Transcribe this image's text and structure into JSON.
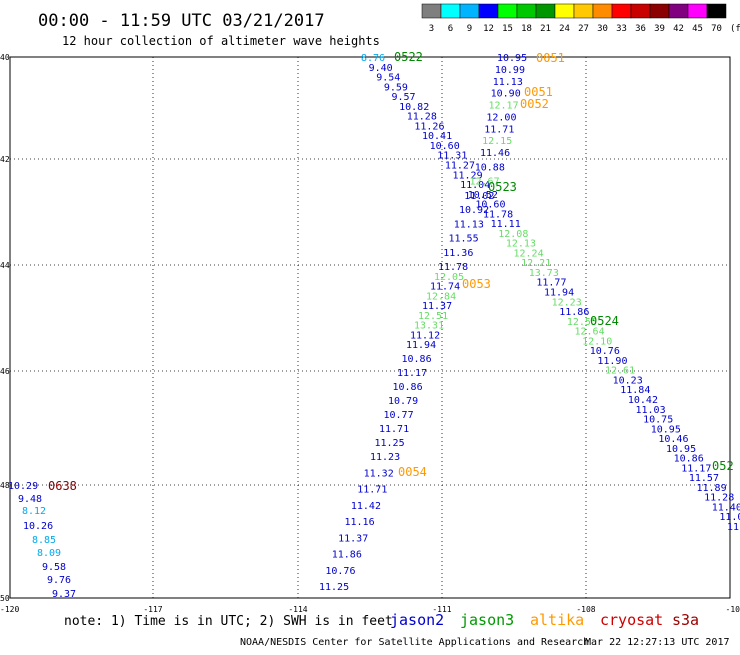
{
  "header": {
    "title": "00:00 - 11:59 UTC 03/21/2017",
    "subtitle": "12 hour collection of altimeter wave heights"
  },
  "scale": {
    "unit": "(ft)",
    "bins": [
      {
        "label": "3",
        "color": "#7f7f7f"
      },
      {
        "label": "6",
        "color": "#00ffff"
      },
      {
        "label": "9",
        "color": "#00b4ff"
      },
      {
        "label": "12",
        "color": "#0000ff"
      },
      {
        "label": "15",
        "color": "#00ff00"
      },
      {
        "label": "18",
        "color": "#00c800"
      },
      {
        "label": "21",
        "color": "#009600"
      },
      {
        "label": "24",
        "color": "#ffff00"
      },
      {
        "label": "27",
        "color": "#ffc800"
      },
      {
        "label": "30",
        "color": "#ff8c00"
      },
      {
        "label": "33",
        "color": "#ff0000"
      },
      {
        "label": "36",
        "color": "#c80000"
      },
      {
        "label": "39",
        "color": "#8b0000"
      },
      {
        "label": "42",
        "color": "#800080"
      },
      {
        "label": "45",
        "color": "#ff00ff"
      },
      {
        "label": "70",
        "color": "#000000"
      }
    ]
  },
  "map": {
    "lon_labels": [
      "-120",
      "-117",
      "-114",
      "-111",
      "-108",
      "-10"
    ],
    "lat_labels": [
      "40",
      "42",
      "44",
      "46",
      "48",
      "50"
    ]
  },
  "satellites": [
    {
      "name": "jason2",
      "color": "#0000cc"
    },
    {
      "name": "jason3",
      "color": "#009900"
    },
    {
      "name": "altika",
      "color": "#ff9900"
    },
    {
      "name": "cryosat",
      "color": "#cc0000"
    },
    {
      "name": "s3a",
      "color": "#990000"
    }
  ],
  "colors": {
    "blue": "#0000cc",
    "light_blue": "#00aaee",
    "green": "#66dd66",
    "orange": "#ff9900",
    "dark_green": "#008800",
    "dark_red": "#880000"
  },
  "track_labels": [
    {
      "text": "0522",
      "c": "dark_green"
    },
    {
      "text": "0051",
      "c": "orange"
    },
    {
      "text": "0051",
      "c": "orange"
    },
    {
      "text": "0052",
      "c": "orange"
    },
    {
      "text": "0523",
      "c": "dark_green"
    },
    {
      "text": "0053",
      "c": "orange"
    },
    {
      "text": "0524",
      "c": "dark_green"
    },
    {
      "text": "0054",
      "c": "orange"
    },
    {
      "text": "0638",
      "c": "dark_red"
    },
    {
      "text": "052",
      "c": "dark_green"
    }
  ],
  "observations": {
    "track_0522": [
      {
        "v": "8.76",
        "c": "light_blue"
      },
      {
        "v": "9.40",
        "c": "blue"
      },
      {
        "v": "9.54",
        "c": "blue"
      },
      {
        "v": "9.59",
        "c": "blue"
      },
      {
        "v": "9.57",
        "c": "blue"
      },
      {
        "v": "10.82",
        "c": "blue"
      },
      {
        "v": "11.28",
        "c": "blue"
      },
      {
        "v": "11.26",
        "c": "blue"
      },
      {
        "v": "10.41",
        "c": "blue"
      },
      {
        "v": "10.60",
        "c": "blue"
      },
      {
        "v": "11.31",
        "c": "blue"
      },
      {
        "v": "11.27",
        "c": "blue"
      },
      {
        "v": "11.29",
        "c": "blue"
      },
      {
        "v": "11.04",
        "c": "blue"
      },
      {
        "v": "10.52",
        "c": "blue"
      },
      {
        "v": "10.60",
        "c": "blue"
      },
      {
        "v": "11.78",
        "c": "blue"
      },
      {
        "v": "11.11",
        "c": "blue"
      },
      {
        "v": "12.08",
        "c": "green"
      },
      {
        "v": "12.13",
        "c": "green"
      },
      {
        "v": "12.24",
        "c": "green"
      },
      {
        "v": "12.21",
        "c": "green"
      },
      {
        "v": "13.73",
        "c": "green"
      },
      {
        "v": "11.77",
        "c": "blue"
      },
      {
        "v": "11.94",
        "c": "blue"
      },
      {
        "v": "12.23",
        "c": "green"
      },
      {
        "v": "11.86",
        "c": "blue"
      },
      {
        "v": "12.55",
        "c": "green"
      },
      {
        "v": "12.64",
        "c": "green"
      },
      {
        "v": "12.10",
        "c": "green"
      },
      {
        "v": "10.76",
        "c": "blue"
      },
      {
        "v": "11.90",
        "c": "blue"
      },
      {
        "v": "12.61",
        "c": "green"
      },
      {
        "v": "10.23",
        "c": "blue"
      },
      {
        "v": "11.84",
        "c": "blue"
      },
      {
        "v": "10.42",
        "c": "blue"
      },
      {
        "v": "11.03",
        "c": "blue"
      },
      {
        "v": "10.75",
        "c": "blue"
      },
      {
        "v": "10.95",
        "c": "blue"
      },
      {
        "v": "10.46",
        "c": "blue"
      },
      {
        "v": "10.95",
        "c": "blue"
      },
      {
        "v": "10.86",
        "c": "blue"
      },
      {
        "v": "11.17",
        "c": "blue"
      },
      {
        "v": "11.57",
        "c": "blue"
      },
      {
        "v": "11.89",
        "c": "blue"
      },
      {
        "v": "11.28",
        "c": "blue"
      },
      {
        "v": "11.40",
        "c": "blue"
      },
      {
        "v": "11.0",
        "c": "blue"
      },
      {
        "v": "11.",
        "c": "blue"
      }
    ],
    "track_0051": [
      {
        "v": "10.95",
        "c": "blue"
      },
      {
        "v": "10.99",
        "c": "blue"
      },
      {
        "v": "11.13",
        "c": "blue"
      },
      {
        "v": "10.90",
        "c": "blue"
      },
      {
        "v": "12.17",
        "c": "green"
      },
      {
        "v": "12.00",
        "c": "blue"
      },
      {
        "v": "11.71",
        "c": "blue"
      },
      {
        "v": "12.15",
        "c": "green"
      },
      {
        "v": "11.46",
        "c": "blue"
      },
      {
        "v": "10.88",
        "c": "blue"
      },
      {
        "v": "12.67",
        "c": "green"
      },
      {
        "v": "11.02",
        "c": "blue"
      },
      {
        "v": "10.92",
        "c": "blue"
      },
      {
        "v": "11.13",
        "c": "blue"
      },
      {
        "v": "11.55",
        "c": "blue"
      },
      {
        "v": "11.36",
        "c": "blue"
      },
      {
        "v": "11.78",
        "c": "blue"
      },
      {
        "v": "12.05",
        "c": "green"
      },
      {
        "v": "11.74",
        "c": "blue"
      },
      {
        "v": "12.84",
        "c": "green"
      },
      {
        "v": "11.37",
        "c": "blue"
      },
      {
        "v": "12.51",
        "c": "green"
      },
      {
        "v": "13.31",
        "c": "green"
      },
      {
        "v": "11.12",
        "c": "blue"
      },
      {
        "v": "11.94",
        "c": "blue"
      },
      {
        "v": "10.86",
        "c": "blue"
      },
      {
        "v": "11.17",
        "c": "blue"
      },
      {
        "v": "10.86",
        "c": "blue"
      },
      {
        "v": "10.79",
        "c": "blue"
      },
      {
        "v": "10.77",
        "c": "blue"
      },
      {
        "v": "11.71",
        "c": "blue"
      },
      {
        "v": "11.25",
        "c": "blue"
      },
      {
        "v": "11.23",
        "c": "blue"
      },
      {
        "v": "11.32",
        "c": "blue"
      },
      {
        "v": "11.71",
        "c": "blue"
      },
      {
        "v": "11.42",
        "c": "blue"
      },
      {
        "v": "11.16",
        "c": "blue"
      },
      {
        "v": "11.37",
        "c": "blue"
      },
      {
        "v": "11.86",
        "c": "blue"
      },
      {
        "v": "10.76",
        "c": "blue"
      },
      {
        "v": "11.25",
        "c": "blue"
      }
    ],
    "track_0638": [
      {
        "v": "10.29",
        "c": "blue"
      },
      {
        "v": "9.48",
        "c": "blue"
      },
      {
        "v": "8.12",
        "c": "light_blue"
      },
      {
        "v": "10.26",
        "c": "blue"
      },
      {
        "v": "8.85",
        "c": "light_blue"
      },
      {
        "v": "8.09",
        "c": "light_blue"
      },
      {
        "v": "9.58",
        "c": "blue"
      },
      {
        "v": "9.76",
        "c": "blue"
      },
      {
        "v": "9.37",
        "c": "blue"
      }
    ]
  },
  "footer": {
    "note": "note: 1) Time is in UTC; 2) SWH is in feet",
    "credit": "NOAA/NESDIS Center for Satellite Applications and Research",
    "generated": "Mar 22 12:27:13 UTC 2017"
  }
}
